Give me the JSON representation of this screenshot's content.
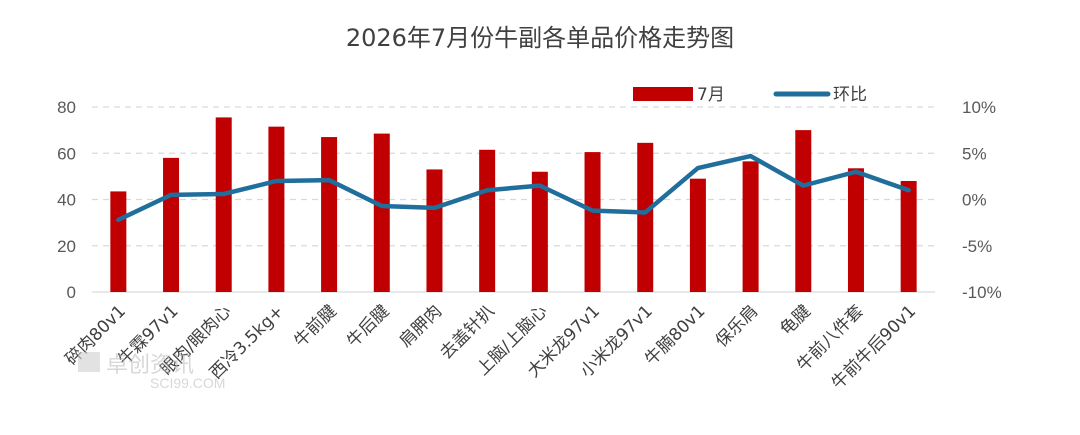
{
  "chart_data": {
    "type": "bar",
    "title": "2026年7月份牛副各单品价格走势图",
    "categories": [
      "碎肉80v1",
      "牛霖97v1",
      "眼肉/眼肉心",
      "西冷3.5kg+",
      "牛前腱",
      "牛后腱",
      "肩胛肉",
      "去盖针扒",
      "上脑/上脑心",
      "大米龙97v1",
      "小米龙97v1",
      "牛腩80v1",
      "保乐肩",
      "龟腱",
      "牛前八件套",
      "牛前牛后90v1"
    ],
    "series": [
      {
        "name": "7月",
        "type": "bar",
        "axis": "left",
        "color": "#C00000",
        "values": [
          43.5,
          58,
          75.5,
          71.5,
          67,
          68.5,
          53,
          61.5,
          52,
          60.5,
          64.5,
          49,
          56.5,
          70,
          53.5,
          48
        ]
      },
      {
        "name": "环比",
        "type": "line",
        "axis": "right",
        "color": "#1F6E9C",
        "values": [
          -2.2,
          0.5,
          0.6,
          2.0,
          2.1,
          -0.7,
          -0.9,
          1.0,
          1.5,
          -1.2,
          -1.4,
          3.4,
          4.7,
          1.5,
          3.0,
          1.0
        ]
      }
    ],
    "y_left": {
      "min": 0,
      "max": 80,
      "ticks": [
        0,
        20,
        40,
        60,
        80
      ],
      "tick_labels": [
        "0",
        "20",
        "40",
        "60",
        "80"
      ]
    },
    "y_right": {
      "min": -10,
      "max": 10,
      "ticks": [
        -10,
        -5,
        0,
        5,
        10
      ],
      "tick_labels": [
        "-10%",
        "-5%",
        "0%",
        "5%",
        "10%"
      ]
    },
    "grid": true,
    "legend": {
      "placement": "top-right",
      "items": [
        "7月",
        "环比"
      ]
    },
    "watermark": {
      "text": "卓创资讯",
      "sub": "SCI99.COM"
    }
  }
}
